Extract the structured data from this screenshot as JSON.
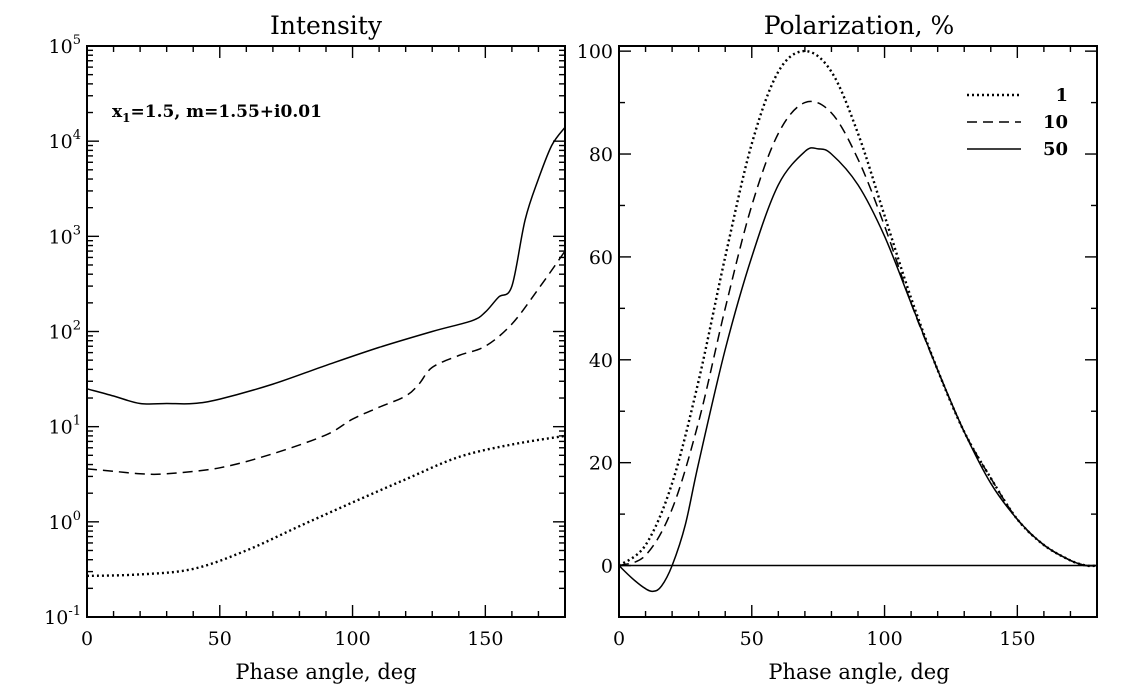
{
  "chart_data": [
    {
      "type": "line",
      "title": "Intensity",
      "xlabel": "Phase angle, deg",
      "ylabel": "",
      "yscale": "log",
      "xlim": [
        0,
        180
      ],
      "ylim": [
        0.1,
        100000
      ],
      "xticks": [
        0,
        50,
        100,
        150
      ],
      "xtick_labels": [
        "0",
        "50",
        "100",
        "150"
      ],
      "yticks": [
        0.1,
        1,
        10,
        100,
        1000,
        10000,
        100000
      ],
      "ytick_labels": [
        {
          "base": "10",
          "exp": "-1"
        },
        {
          "base": "10",
          "exp": "0"
        },
        {
          "base": "10",
          "exp": "1"
        },
        {
          "base": "10",
          "exp": "2"
        },
        {
          "base": "10",
          "exp": "3"
        },
        {
          "base": "10",
          "exp": "4"
        },
        {
          "base": "10",
          "exp": "5"
        }
      ],
      "annotation": {
        "prefix": "x",
        "sub": "1",
        "rest": "=1.5,  m=1.55+i0.01"
      },
      "series": [
        {
          "name": "1",
          "style": "dotted",
          "x": [
            0,
            20,
            40,
            60,
            80,
            100,
            120,
            140,
            160,
            180
          ],
          "y": [
            0.27,
            0.28,
            0.32,
            0.5,
            0.9,
            1.6,
            2.8,
            4.8,
            6.5,
            8
          ]
        },
        {
          "name": "10",
          "style": "dashed",
          "x": [
            0,
            10,
            20,
            30,
            50,
            70,
            90,
            100,
            110,
            120,
            125,
            130,
            140,
            150,
            160,
            170,
            180
          ],
          "y": [
            3.6,
            3.4,
            3.2,
            3.2,
            3.7,
            5.2,
            8.2,
            12,
            16,
            21,
            28,
            42,
            56,
            70,
            120,
            280,
            700
          ]
        },
        {
          "name": "50",
          "style": "solid",
          "x": [
            0,
            10,
            20,
            30,
            40,
            50,
            70,
            90,
            110,
            130,
            145,
            150,
            155,
            160,
            165,
            170,
            175,
            180
          ],
          "y": [
            25,
            21,
            17.5,
            17.5,
            17.5,
            19.5,
            28,
            44,
            68,
            100,
            130,
            160,
            230,
            300,
            1500,
            4000,
            9000,
            14000
          ]
        }
      ]
    },
    {
      "type": "line",
      "title": "Polarization, %",
      "xlabel": "Phase angle, deg",
      "ylabel": "",
      "xlim": [
        0,
        180
      ],
      "ylim": [
        -10,
        101
      ],
      "xticks": [
        0,
        50,
        100,
        150
      ],
      "xtick_labels": [
        "0",
        "50",
        "100",
        "150"
      ],
      "yticks": [
        0,
        20,
        40,
        60,
        80,
        100
      ],
      "ytick_labels": [
        "0",
        "20",
        "40",
        "60",
        "80",
        "100"
      ],
      "zero_line": true,
      "legend": {
        "placement": "top-right"
      },
      "series": [
        {
          "name": "1",
          "style": "dotted",
          "x": [
            0,
            10,
            20,
            30,
            40,
            50,
            60,
            70,
            80,
            90,
            100,
            110,
            120,
            130,
            140,
            150,
            160,
            170,
            176,
            180
          ],
          "y": [
            0,
            4,
            16,
            36,
            60,
            82,
            96,
            100,
            96,
            84,
            68,
            52,
            38,
            26,
            17,
            9,
            4,
            1,
            0,
            0
          ]
        },
        {
          "name": "10",
          "style": "dashed",
          "x": [
            0,
            10,
            20,
            30,
            40,
            50,
            60,
            70,
            80,
            90,
            100,
            110,
            120,
            130,
            140,
            150,
            160,
            170,
            176,
            180
          ],
          "y": [
            0,
            2,
            11,
            28,
            50,
            70,
            84,
            90,
            88,
            79,
            66,
            51,
            38,
            26,
            17,
            9,
            4,
            1,
            0,
            0
          ]
        },
        {
          "name": "50",
          "style": "solid",
          "x": [
            0,
            5,
            10,
            13,
            16,
            20,
            25,
            30,
            40,
            50,
            60,
            70,
            75,
            80,
            90,
            100,
            110,
            120,
            130,
            140,
            150,
            160,
            170,
            176,
            180
          ],
          "y": [
            0,
            -2.5,
            -4.5,
            -5,
            -4,
            0,
            8,
            20,
            42,
            60,
            74,
            80.5,
            81,
            80,
            74,
            64,
            51,
            38,
            26,
            16,
            9,
            4,
            1,
            0,
            0
          ]
        }
      ]
    }
  ]
}
